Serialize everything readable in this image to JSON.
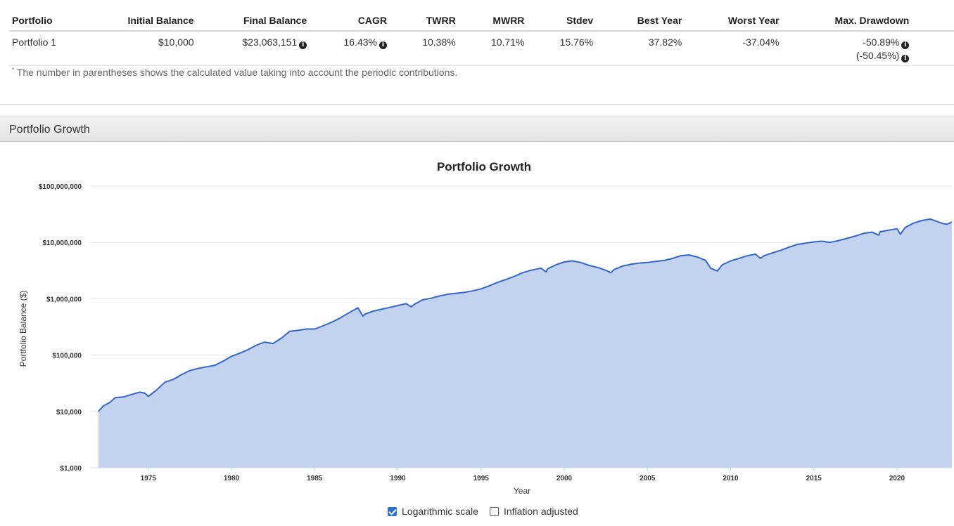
{
  "stats": {
    "headers": {
      "portfolio": "Portfolio",
      "initial_balance": "Initial Balance",
      "final_balance": "Final Balance",
      "cagr": "CAGR",
      "twrr": "TWRR",
      "mwrr": "MWRR",
      "stdev": "Stdev",
      "best_year": "Best Year",
      "worst_year": "Worst Year",
      "max_drawdown": "Max. Drawdown"
    },
    "row": {
      "portfolio": "Portfolio 1",
      "initial_balance": "$10,000",
      "final_balance": "$23,063,151",
      "cagr": "16.43%",
      "twrr": "10.38%",
      "mwrr": "10.71%",
      "stdev": "15.76%",
      "best_year": "37.82%",
      "worst_year": "-37.04%",
      "max_drawdown": "-50.89%",
      "max_drawdown_contrib": "(-50.45%)"
    },
    "footnote_mark": "*",
    "footnote": "The number in parentheses shows the calculated value taking into account the periodic contributions.",
    "info_icon": "info-circle-icon"
  },
  "section": {
    "title": "Portfolio Growth"
  },
  "controls": {
    "log_scale_label": "Logarithmic scale",
    "log_scale_checked": true,
    "inflation_label": "Inflation adjusted",
    "inflation_checked": false
  },
  "chart_data": {
    "type": "area",
    "title": "Portfolio Growth",
    "xlabel": "Year",
    "ylabel": "Portfolio Balance ($)",
    "y_scale": "log",
    "ylim": [
      1000,
      100000000
    ],
    "xlim": [
      1971.5,
      2023.3
    ],
    "y_ticks": [
      1000,
      10000,
      100000,
      1000000,
      10000000,
      100000000
    ],
    "y_tick_labels": [
      "$1,000",
      "$10,000",
      "$100,000",
      "$1,000,000",
      "$10,000,000",
      "$100,000,000"
    ],
    "x_ticks": [
      1975,
      1980,
      1985,
      1990,
      1995,
      2000,
      2005,
      2010,
      2015,
      2020
    ],
    "x_tick_labels": [
      "1975",
      "1980",
      "1985",
      "1990",
      "1995",
      "2000",
      "2005",
      "2010",
      "2015",
      "2020"
    ],
    "grid": true,
    "line_color": "#3366cc",
    "fill_color": "#c2d2ef",
    "series": [
      {
        "x": [
          1972.0,
          1972.3,
          1972.7,
          1973.0,
          1973.5,
          1974.0,
          1974.5,
          1974.8,
          1975.0,
          1975.5,
          1976.0,
          1976.5,
          1977.0,
          1977.5,
          1978.0,
          1978.5,
          1979.0,
          1979.5,
          1980.0,
          1980.5,
          1981.0,
          1981.5,
          1982.0,
          1982.5,
          1983.0,
          1983.5,
          1984.0,
          1984.5,
          1985.0,
          1985.5,
          1986.0,
          1986.5,
          1987.0,
          1987.6,
          1987.9,
          1988.0,
          1988.5,
          1989.0,
          1989.5,
          1990.0,
          1990.5,
          1990.8,
          1991.0,
          1991.5,
          1992.0,
          1992.5,
          1993.0,
          1993.5,
          1994.0,
          1994.5,
          1995.0,
          1995.5,
          1996.0,
          1996.5,
          1997.0,
          1997.5,
          1998.0,
          1998.6,
          1998.9,
          1999.0,
          1999.5,
          2000.0,
          2000.5,
          2001.0,
          2001.5,
          2002.0,
          2002.5,
          2002.8,
          2003.0,
          2003.5,
          2004.0,
          2004.5,
          2005.0,
          2005.5,
          2006.0,
          2006.5,
          2007.0,
          2007.5,
          2008.0,
          2008.5,
          2008.8,
          2009.2,
          2009.5,
          2010.0,
          2010.5,
          2011.0,
          2011.5,
          2011.8,
          2012.0,
          2012.5,
          2013.0,
          2013.5,
          2014.0,
          2014.5,
          2015.0,
          2015.5,
          2016.0,
          2016.5,
          2017.0,
          2017.5,
          2018.0,
          2018.5,
          2018.9,
          2019.0,
          2019.5,
          2020.0,
          2020.2,
          2020.5,
          2021.0,
          2021.5,
          2022.0,
          2022.5,
          2022.8,
          2023.0,
          2023.3
        ],
        "values": [
          10000,
          12500,
          14500,
          17500,
          18000,
          20000,
          22000,
          21000,
          18500,
          24000,
          33000,
          37000,
          45000,
          53000,
          58000,
          62000,
          66000,
          78000,
          95000,
          108000,
          125000,
          150000,
          170000,
          160000,
          200000,
          265000,
          275000,
          290000,
          290000,
          330000,
          380000,
          450000,
          550000,
          690000,
          490000,
          530000,
          600000,
          650000,
          700000,
          760000,
          820000,
          720000,
          800000,
          960000,
          1020000,
          1120000,
          1200000,
          1250000,
          1300000,
          1380000,
          1500000,
          1700000,
          1950000,
          2200000,
          2500000,
          2900000,
          3200000,
          3500000,
          3000000,
          3400000,
          4000000,
          4500000,
          4700000,
          4400000,
          3900000,
          3600000,
          3200000,
          2900000,
          3300000,
          3800000,
          4100000,
          4300000,
          4400000,
          4600000,
          4800000,
          5200000,
          5800000,
          6000000,
          5500000,
          4800000,
          3500000,
          3100000,
          4000000,
          4700000,
          5200000,
          5800000,
          6200000,
          5200000,
          5800000,
          6500000,
          7200000,
          8200000,
          9200000,
          9700000,
          10200000,
          10500000,
          10000000,
          10800000,
          11800000,
          13000000,
          14500000,
          15200000,
          13500000,
          15500000,
          16500000,
          17500000,
          14000000,
          18500000,
          22000000,
          24500000,
          26000000,
          23000000,
          21500000,
          21000000,
          23063151
        ]
      }
    ]
  }
}
